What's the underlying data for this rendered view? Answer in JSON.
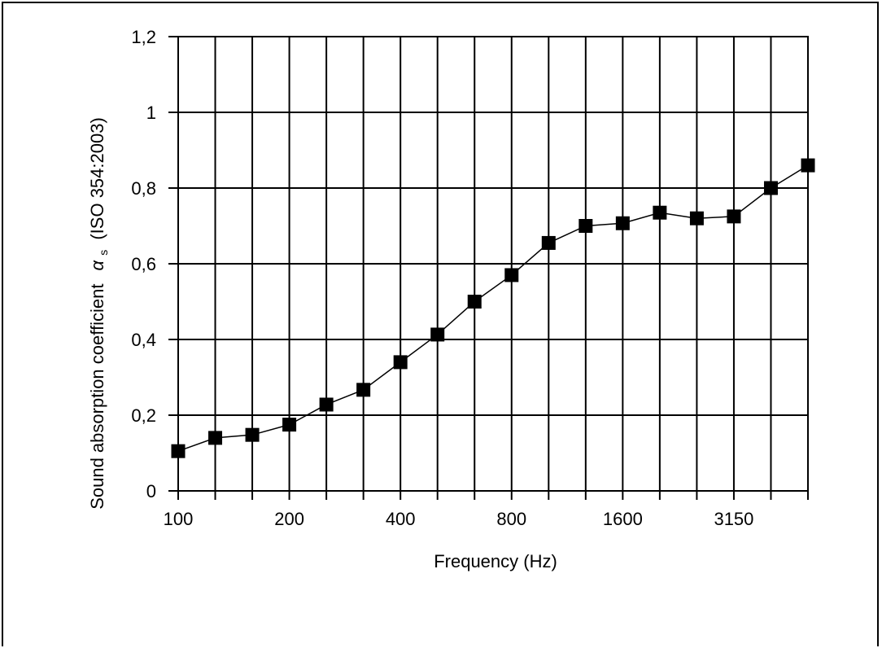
{
  "chart_data": {
    "type": "line",
    "xlabel": "Frequency  (Hz)",
    "ylabel_main": "Sound absorption coefficient",
    "ylabel_symbol": "α",
    "ylabel_subscript": "s",
    "ylabel_standard": "(ISO 354:2003)",
    "ylim": [
      0,
      1.2
    ],
    "y_ticks": [
      0,
      0.2,
      0.4,
      0.6,
      0.8,
      1.0,
      1.2
    ],
    "y_tick_labels": [
      "0",
      "0,2",
      "0,4",
      "0,6",
      "0,8",
      "1",
      "1,2"
    ],
    "x": [
      100,
      125,
      160,
      200,
      250,
      315,
      400,
      500,
      630,
      800,
      1000,
      1250,
      1600,
      2000,
      2500,
      3150,
      4000,
      5000
    ],
    "x_tick_labels": [
      "100",
      "",
      "",
      "200",
      "",
      "",
      "400",
      "",
      "",
      "800",
      "",
      "",
      "1600",
      "",
      "",
      "3150",
      "",
      ""
    ],
    "grid": true,
    "series": [
      {
        "marker": "square",
        "color": "#000000",
        "values": [
          0.105,
          0.14,
          0.148,
          0.175,
          0.228,
          0.267,
          0.34,
          0.413,
          0.5,
          0.57,
          0.655,
          0.7,
          0.707,
          0.735,
          0.72,
          0.725,
          0.8,
          0.86
        ]
      }
    ]
  }
}
